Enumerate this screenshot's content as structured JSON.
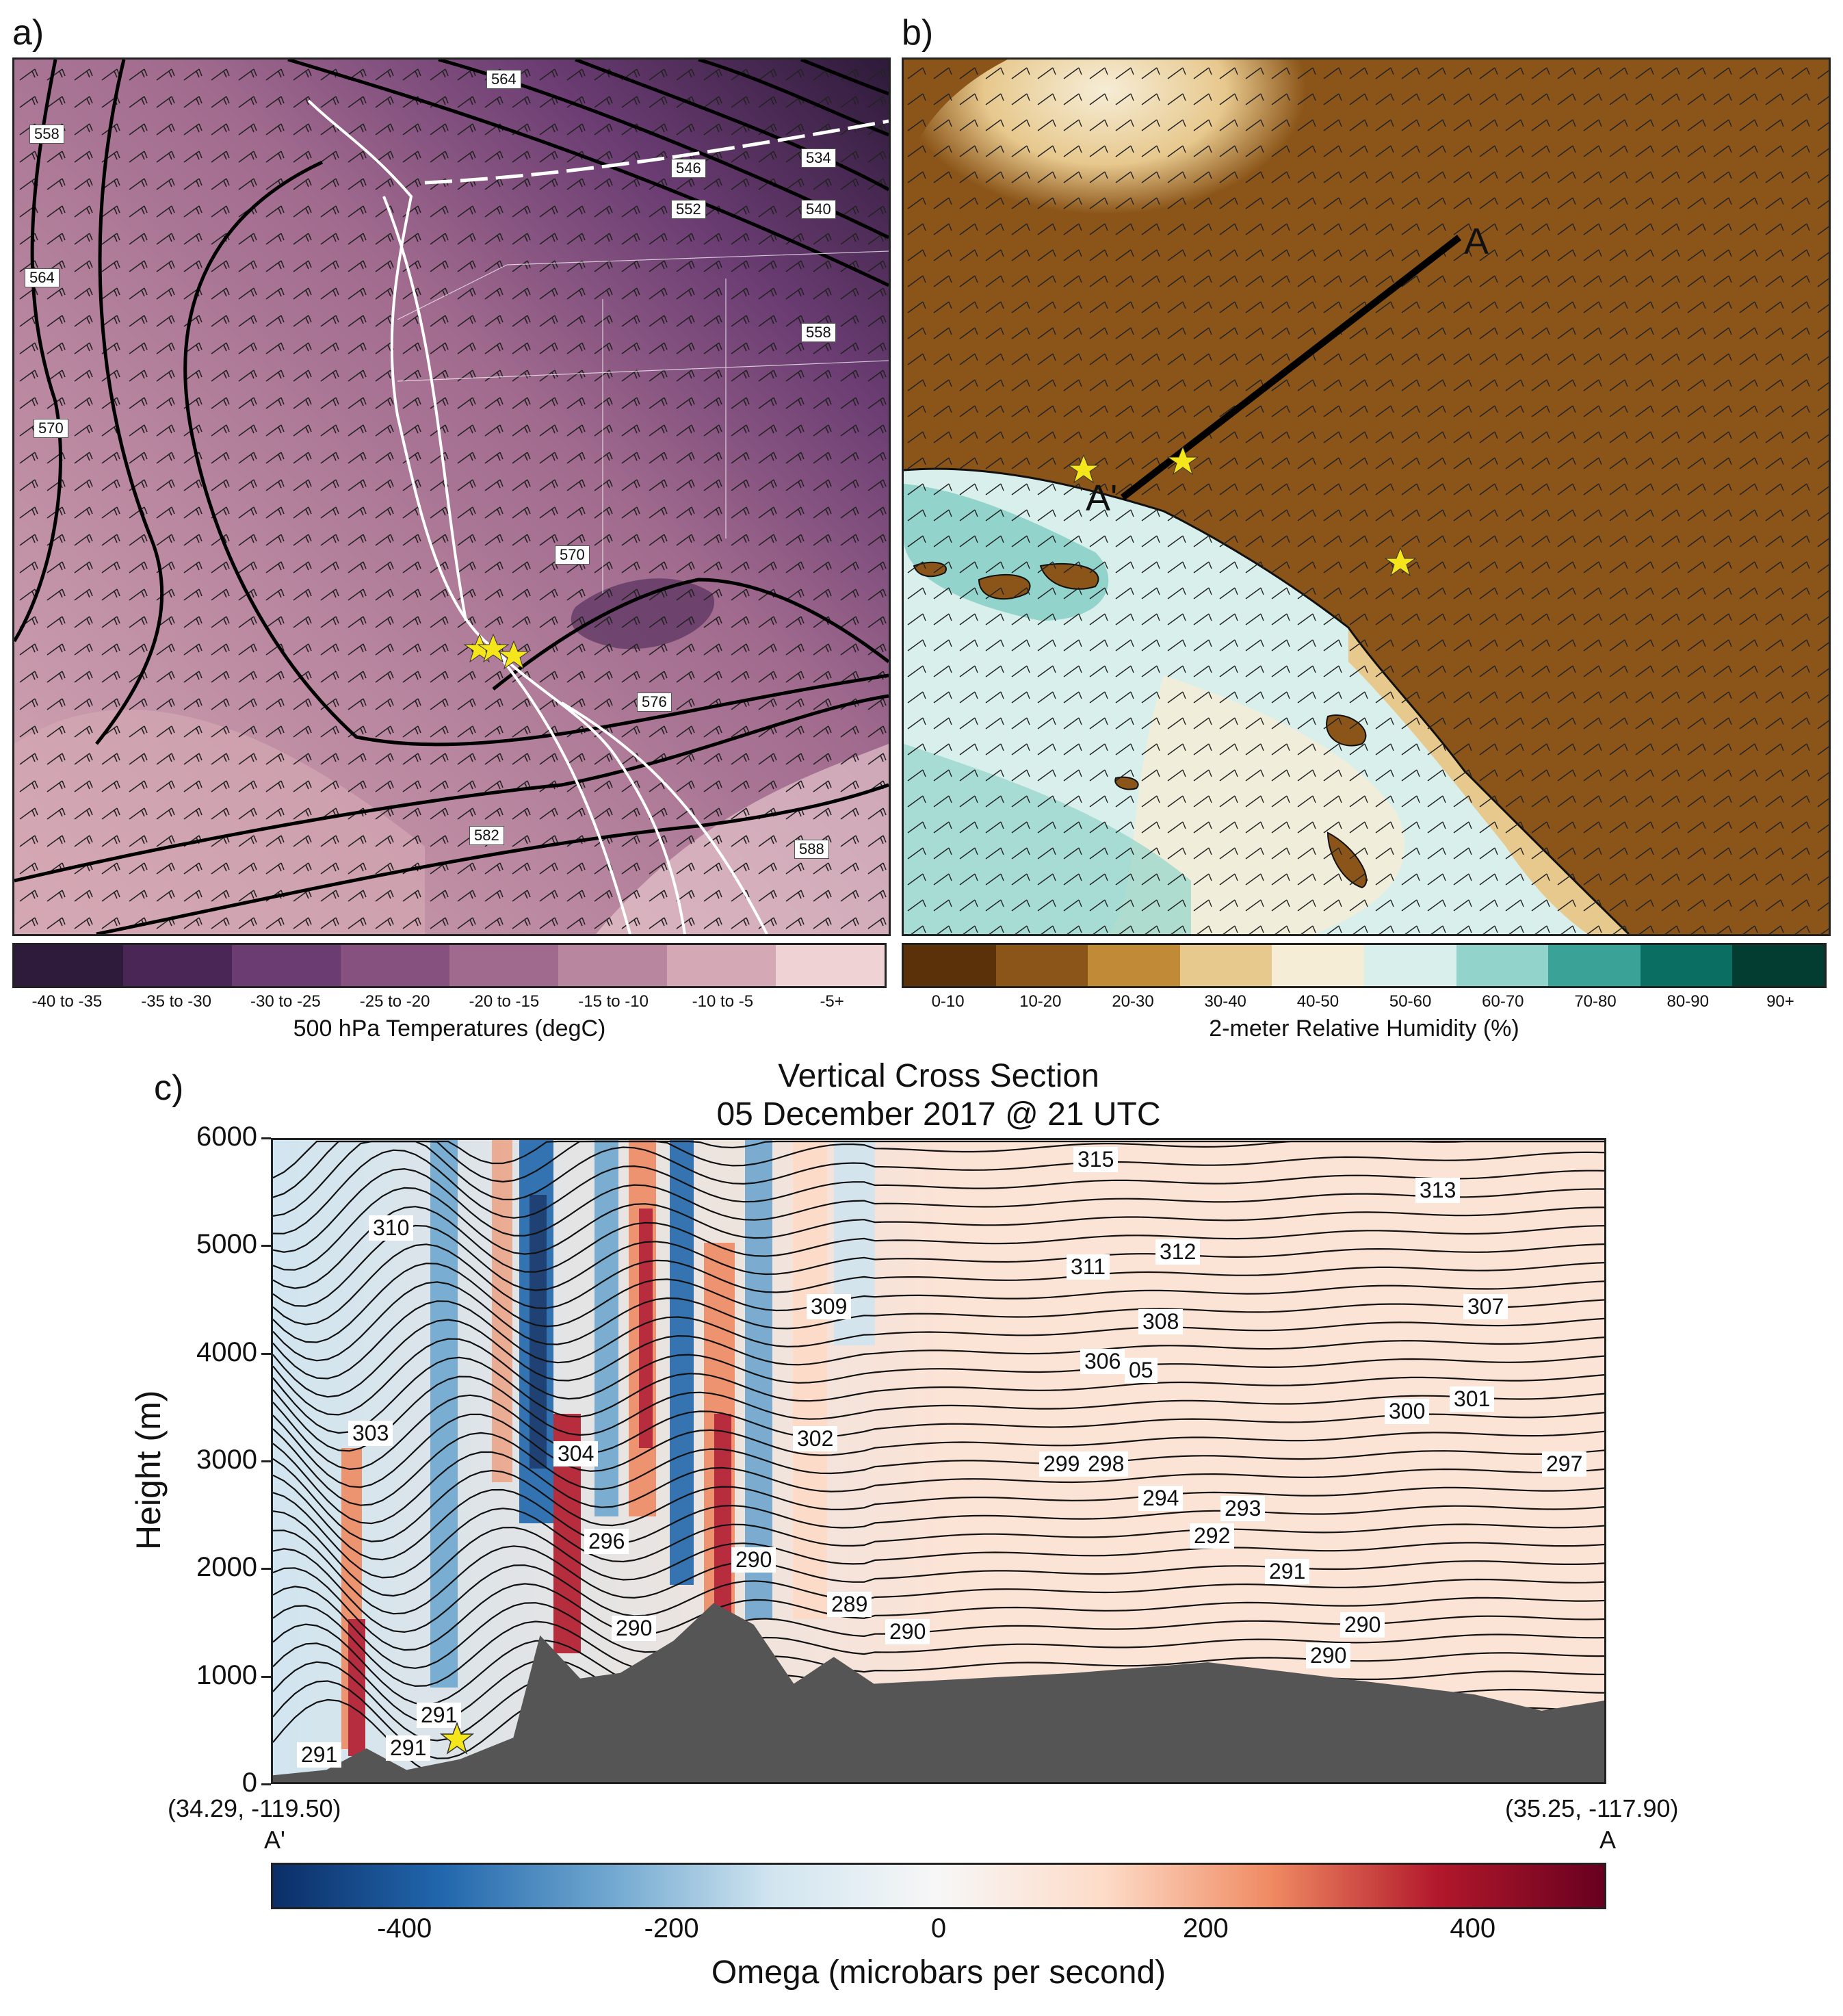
{
  "colors": {
    "temp_bins": [
      "#2e1a3a",
      "#4a2657",
      "#6a3c72",
      "#87517f",
      "#a06a8e",
      "#b8869f",
      "#d4a8b4",
      "#efd2d4"
    ],
    "rh_bins": [
      "#5a3108",
      "#8b5519",
      "#c08a36",
      "#e7c88d",
      "#f6edd6",
      "#d8efec",
      "#92d4cb",
      "#3aa296",
      "#0b6e62",
      "#033c30"
    ],
    "omega_scale": [
      "#0b2e67",
      "#2166ac",
      "#6ea6cf",
      "#d1e5f0",
      "#f7f7f7",
      "#fddbc7",
      "#ef8a62",
      "#b2182b",
      "#67001f"
    ],
    "terrain": "#555555",
    "star": "#f5e51b"
  },
  "panel_a": {
    "letter": "a)",
    "colorbar_labels": [
      "-40 to -35",
      "-35 to -30",
      "-30 to -25",
      "-25 to -20",
      "-20 to -15",
      "-15 to -10",
      "-10 to -5",
      "-5+"
    ],
    "colorbar_title": "500 hPa Temperatures (degC)",
    "contour_labels": [
      "564",
      "558",
      "546",
      "534",
      "552",
      "540",
      "564",
      "558",
      "570",
      "570",
      "576",
      "582",
      "588"
    ]
  },
  "panel_b": {
    "letter": "b)",
    "colorbar_labels": [
      "0-10",
      "10-20",
      "20-30",
      "30-40",
      "40-50",
      "50-60",
      "60-70",
      "70-80",
      "80-90",
      "90+"
    ],
    "colorbar_title": "2-meter Relative Humidity (%)",
    "section_start": "A",
    "section_end": "A'"
  },
  "panel_c": {
    "letter": "c)",
    "title_line1": "Vertical Cross Section",
    "title_line2": "05 December 2017 @ 21 UTC",
    "left_coord": "(34.29, -119.50)",
    "left_label": "A'",
    "right_coord": "(35.25, -117.90)",
    "right_label": "A",
    "colorbar_title": "Omega (microbars per second)",
    "contour_labels": [
      "315",
      "313",
      "310",
      "312",
      "311",
      "307",
      "309",
      "308",
      "306",
      "05",
      "303",
      "301",
      "300",
      "304",
      "302",
      "299",
      "298",
      "297",
      "294",
      "293",
      "292",
      "296",
      "291",
      "290",
      "289",
      "290",
      "290",
      "290",
      "290",
      "291",
      "291",
      "291"
    ]
  },
  "chart_data": {
    "type": "heatmap",
    "title": "Vertical Cross Section",
    "subtitle": "05 December 2017 @ 21 UTC",
    "ylabel": "Height (m)",
    "ylim": [
      0,
      6000
    ],
    "yticks": [
      0,
      1000,
      2000,
      3000,
      4000,
      5000,
      6000
    ],
    "colorbar": {
      "label": "Omega (microbars per second)",
      "range": [
        -500,
        500
      ],
      "ticks": [
        -400,
        -200,
        0,
        200,
        400
      ]
    },
    "x_endpoints": [
      {
        "label": "A'",
        "coord": "(34.29, -119.50)"
      },
      {
        "label": "A",
        "coord": "(35.25, -117.90)"
      }
    ],
    "terrain_profile": [
      [
        0,
        100
      ],
      [
        0.04,
        150
      ],
      [
        0.07,
        350
      ],
      [
        0.1,
        150
      ],
      [
        0.14,
        250
      ],
      [
        0.18,
        450
      ],
      [
        0.2,
        1400
      ],
      [
        0.23,
        1000
      ],
      [
        0.26,
        1050
      ],
      [
        0.28,
        1200
      ],
      [
        0.3,
        1350
      ],
      [
        0.33,
        1700
      ],
      [
        0.36,
        1500
      ],
      [
        0.39,
        950
      ],
      [
        0.42,
        1200
      ],
      [
        0.45,
        950
      ],
      [
        0.6,
        1050
      ],
      [
        0.7,
        1150
      ],
      [
        0.8,
        1000
      ],
      [
        0.9,
        850
      ],
      [
        0.95,
        700
      ],
      [
        1,
        800
      ]
    ]
  }
}
